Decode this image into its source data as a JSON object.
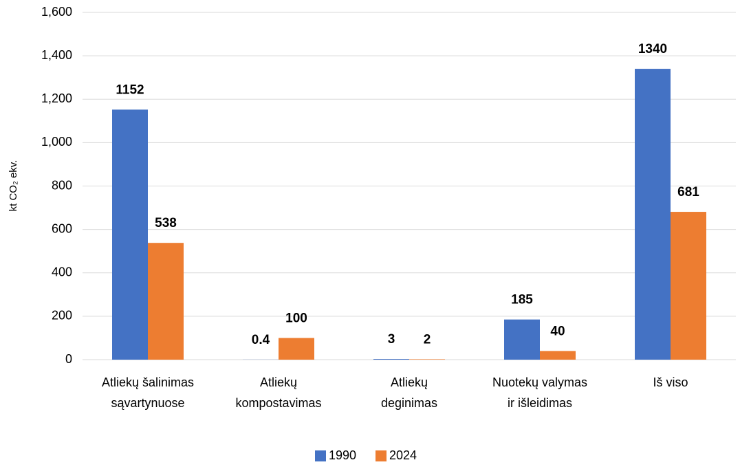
{
  "chart_data": {
    "type": "bar",
    "ylabel": "kt CO₂ ekv.",
    "categories": [
      [
        "Atliekų šalinimas",
        "sąvartynuose"
      ],
      [
        "Atliekų",
        "kompostavimas"
      ],
      [
        "Atliekų",
        "deginimas"
      ],
      [
        "Nuotekų valymas",
        "ir išleidimas"
      ],
      [
        "Iš viso"
      ]
    ],
    "series": [
      {
        "name": "1990",
        "color": "#4472c4",
        "values": [
          1152,
          0.4,
          3,
          185,
          1340
        ]
      },
      {
        "name": "2024",
        "color": "#ed7d31",
        "values": [
          538,
          100,
          2,
          40,
          681
        ]
      }
    ],
    "ylim": [
      0,
      1600
    ],
    "yticks": [
      0,
      200,
      400,
      600,
      800,
      {
        "value": 1000,
        "label": "1,000"
      },
      {
        "value": 1200,
        "label": "1,200"
      },
      {
        "value": 1400,
        "label": "1,400"
      },
      {
        "value": 1600,
        "label": "1,600"
      }
    ],
    "grid": true,
    "legend": "bottom"
  }
}
